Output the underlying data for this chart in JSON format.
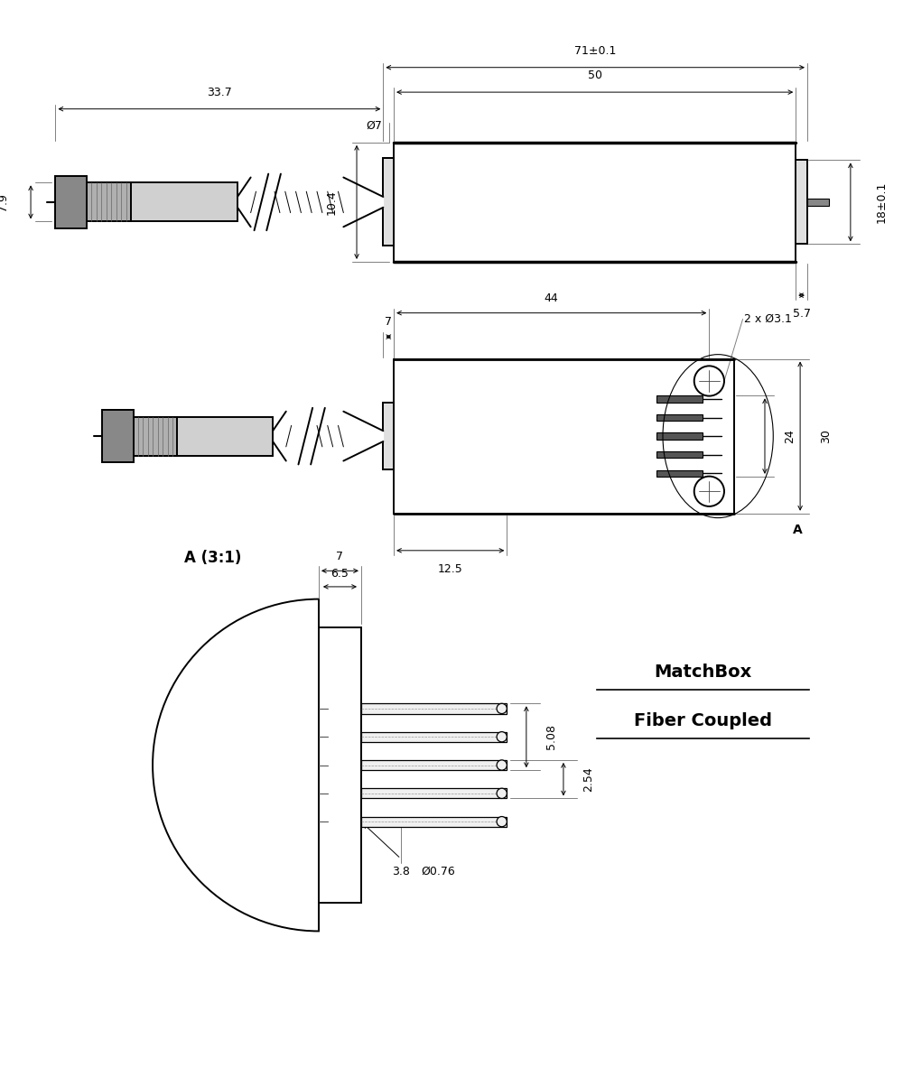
{
  "bg_color": "#ffffff",
  "line_color": "#000000",
  "fig_width": 10.0,
  "fig_height": 12.03,
  "annotations": {
    "dim_71": "71±0.1",
    "dim_50": "50",
    "dim_337": "33.7",
    "dim_79": "7.9",
    "dim_18": "18±0.1",
    "dim_57": "5.7",
    "dim_10": "10.4",
    "dim_07": "Ø7",
    "dim_44": "44",
    "dim_2x31": "2 x Ø3.1",
    "dim_125": "12.5",
    "dim_24": "24",
    "dim_30": "30",
    "dim_7b": "7",
    "dim_7c": "7",
    "dim_65": "6.5",
    "dim_508": "5.08",
    "dim_254": "2.54",
    "dim_076": "Ø0.76",
    "dim_38": "3.8",
    "label_A1": "A",
    "label_A2": "A (3:1)",
    "matchbox1": "MatchBox",
    "matchbox2": "Fiber Coupled"
  }
}
